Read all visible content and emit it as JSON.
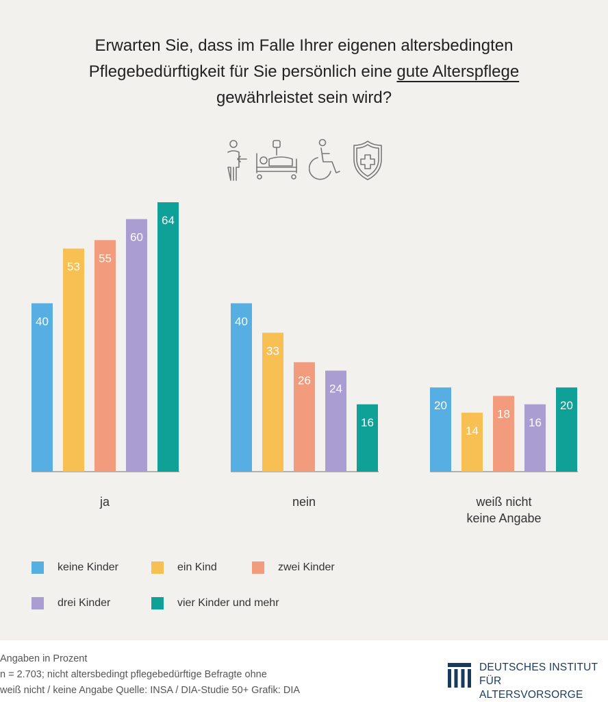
{
  "title": {
    "line1": "Erwarten Sie, dass im Falle Ihrer eigenen altersbedingten",
    "line2_pre": "Pflegebedürftigkeit für Sie persönlich eine ",
    "line2_ul": "gute Alterspflege",
    "line3": "gewährleistet sein wird?"
  },
  "icons": [
    "caregiver-icon",
    "hospital-bed-icon",
    "wheelchair-icon",
    "shield-cross-icon"
  ],
  "chart_data": {
    "type": "bar",
    "categories": [
      "ja",
      "nein",
      "weiß nicht\nkeine Angabe"
    ],
    "series": [
      {
        "name": "keine Kinder",
        "values": [
          40,
          40,
          20
        ]
      },
      {
        "name": "ein Kind",
        "values": [
          53,
          33,
          14
        ]
      },
      {
        "name": "zwei Kinder",
        "values": [
          55,
          26,
          18
        ]
      },
      {
        "name": "drei Kinder",
        "values": [
          60,
          24,
          16
        ]
      },
      {
        "name": "vier Kinder und mehr",
        "values": [
          64,
          16,
          20
        ]
      }
    ],
    "colors": [
      "#56aee2",
      "#f8bf52",
      "#f39b7d",
      "#a99dd1",
      "#0fa197"
    ],
    "ylim": [
      0,
      70
    ],
    "title": "Erwarten Sie, dass im Falle Ihrer eigenen altersbedingten Pflegebedürftigkeit für Sie persönlich eine gute Alterspflege gewährleistet sein wird?"
  },
  "categories_display": {
    "ja": "ja",
    "nein": "nein",
    "weiss_line1": "weiß nicht",
    "weiss_line2": "keine Angabe"
  },
  "legend": [
    "keine Kinder",
    "ein Kind",
    "zwei Kinder",
    "drei Kinder",
    "vier Kinder und mehr"
  ],
  "footer": {
    "line1": "Angaben in Prozent",
    "line2": "n = 2.703; nicht altersbedingt pflegebedürftige Befragte ohne",
    "line3": "weiß nicht / keine Angabe  Quelle: INSA / DIA-Studie 50+  Grafik: DIA"
  },
  "logo": {
    "line1": "DEUTSCHES INSTITUT",
    "line2": "FÜR ALTERSVORSORGE",
    "color": "#1a3a5c"
  }
}
